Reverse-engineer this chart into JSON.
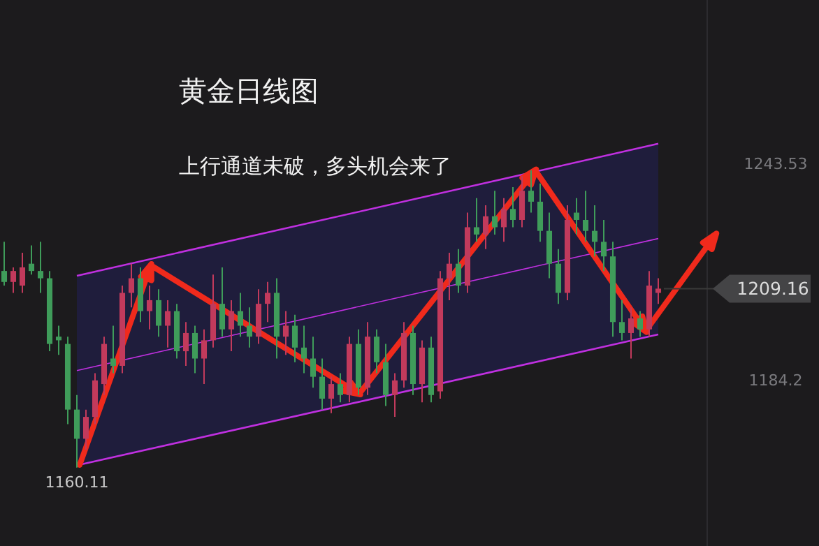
{
  "chart_data": {
    "type": "candlestick",
    "title": "黄金日线图",
    "subtitle": "上行通道未破，多头机会来了",
    "ylim": [
      1138.6,
      1288.3
    ],
    "yticks": [
      1184.2,
      1243.53
    ],
    "tick_labels": "y",
    "series": [
      {
        "type": "line",
        "color": "#c030e0",
        "values": [
          null,
          null,
          null,
          null,
          null,
          null,
          null,
          null,
          1186.7,
          null,
          null,
          null,
          null,
          null,
          null,
          null,
          null,
          null,
          null,
          null,
          null,
          null,
          null,
          null,
          null,
          null,
          null,
          null,
          null,
          null,
          null,
          null,
          null,
          null,
          null,
          null,
          null,
          null,
          null,
          null,
          null,
          null,
          null,
          null,
          null,
          null,
          null,
          null,
          null,
          null,
          null,
          null,
          null,
          null,
          null,
          null,
          null,
          null,
          null,
          null,
          null,
          null,
          null,
          null,
          null,
          null,
          null,
          null,
          null,
          null,
          null,
          null,
          1222.9
        ],
        "lower": [
          null,
          null,
          null,
          null,
          null,
          null,
          null,
          null,
          1160.7,
          null,
          null,
          null,
          null,
          null,
          null,
          null,
          null,
          null,
          null,
          null,
          null,
          null,
          null,
          null,
          null,
          null,
          null,
          null,
          null,
          null,
          null,
          null,
          null,
          null,
          null,
          null,
          null,
          null,
          null,
          null,
          null,
          null,
          null,
          null,
          null,
          null,
          null,
          null,
          null,
          null,
          null,
          null,
          null,
          null,
          null,
          null,
          null,
          null,
          null,
          null,
          null,
          null,
          null,
          null,
          null,
          null,
          null,
          null,
          null,
          null,
          null,
          null,
          1196.6
        ],
        "upper": [
          null,
          null,
          null,
          null,
          null,
          null,
          null,
          null,
          1212.7,
          null,
          null,
          null,
          null,
          null,
          null,
          null,
          null,
          null,
          null,
          null,
          null,
          null,
          null,
          null,
          null,
          null,
          null,
          null,
          null,
          null,
          null,
          null,
          null,
          null,
          null,
          null,
          null,
          null,
          null,
          null,
          null,
          null,
          null,
          null,
          null,
          null,
          null,
          null,
          null,
          null,
          null,
          null,
          null,
          null,
          null,
          null,
          null,
          null,
          null,
          null,
          null,
          null,
          null,
          null,
          null,
          null,
          null,
          null,
          null,
          null,
          null,
          null,
          1248.9
        ]
      },
      {
        "type": "line",
        "color": "#c030e0",
        "values": [
          null,
          null,
          null,
          null,
          null,
          null,
          null,
          null,
          1212.7,
          null,
          null,
          null,
          null,
          null,
          null,
          null,
          null,
          null,
          null,
          null,
          null,
          null,
          null,
          null,
          null,
          null,
          null,
          null,
          null,
          null,
          null,
          null,
          null,
          null,
          null,
          null,
          null,
          null,
          null,
          null,
          null,
          null,
          null,
          null,
          null,
          null,
          null,
          null,
          null,
          null,
          null,
          null,
          null,
          null,
          null,
          null,
          null,
          null,
          null,
          null,
          null,
          null,
          null,
          null,
          null,
          null,
          null,
          null,
          null,
          null,
          null,
          null,
          1248.9
        ]
      },
      {
        "type": "line",
        "color": "#c030e0",
        "values": [
          null,
          null,
          null,
          null,
          null,
          null,
          null,
          null,
          1160.7,
          null,
          null,
          null,
          null,
          null,
          null,
          null,
          null,
          null,
          null,
          null,
          null,
          null,
          null,
          null,
          null,
          null,
          null,
          null,
          null,
          null,
          null,
          null,
          null,
          null,
          null,
          null,
          null,
          null,
          null,
          null,
          null,
          null,
          null,
          null,
          null,
          null,
          null,
          null,
          null,
          null,
          null,
          null,
          null,
          null,
          null,
          null,
          null,
          null,
          null,
          null,
          null,
          null,
          null,
          null,
          null,
          null,
          null,
          null,
          null,
          null,
          null,
          null,
          1196.6
        ]
      }
    ],
    "categories": [
      null,
      null,
      null,
      null,
      null,
      null,
      null,
      null,
      null,
      null,
      null,
      null,
      null,
      null,
      null,
      null,
      null,
      null,
      null,
      null,
      null,
      null,
      null,
      null,
      null,
      null,
      null,
      null,
      null,
      null,
      null,
      null,
      null,
      null,
      null,
      null,
      null,
      null,
      null,
      null,
      null,
      null,
      null,
      null,
      null,
      null,
      null,
      null,
      null,
      null,
      null,
      null,
      null,
      null,
      null,
      null,
      null,
      null,
      null,
      null,
      null,
      null,
      null,
      null,
      null,
      null,
      null,
      null,
      null,
      null,
      null,
      null,
      null
    ],
    "ohlc": [
      [
        1214,
        1222,
        1210,
        1211
      ],
      [
        1211,
        1215,
        1208,
        1214
      ],
      [
        1210,
        1219,
        1208,
        1215
      ],
      [
        1216,
        1221,
        1213,
        1214
      ],
      [
        1214,
        1222,
        1208,
        1212
      ],
      [
        1212,
        1214,
        1192,
        1194
      ],
      [
        1196,
        1199,
        1191,
        1195
      ],
      [
        1194,
        1196,
        1172,
        1176
      ],
      [
        1176,
        1180,
        1160.11,
        1168
      ],
      [
        1168,
        1176,
        1165,
        1174
      ],
      [
        1174,
        1186,
        1172,
        1184
      ],
      [
        1183,
        1196,
        1180,
        1194
      ],
      [
        1190,
        1199,
        1186,
        1188
      ],
      [
        1188,
        1210,
        1186,
        1208
      ],
      [
        1208,
        1216,
        1204,
        1212
      ],
      [
        1212,
        1215,
        1200,
        1203
      ],
      [
        1203,
        1210,
        1198,
        1206
      ],
      [
        1206,
        1209,
        1196,
        1199
      ],
      [
        1199,
        1206,
        1193,
        1203
      ],
      [
        1203,
        1205,
        1190,
        1192
      ],
      [
        1192,
        1200,
        1188,
        1197
      ],
      [
        1197,
        1199,
        1186,
        1190
      ],
      [
        1190,
        1198,
        1183,
        1195
      ],
      [
        1195,
        1213,
        1193,
        1205
      ],
      [
        1205,
        1215,
        1196,
        1198
      ],
      [
        1198,
        1206,
        1192,
        1203
      ],
      [
        1203,
        1208,
        1196,
        1199
      ],
      [
        1199,
        1204,
        1193,
        1196
      ],
      [
        1196,
        1209,
        1194,
        1205
      ],
      [
        1205,
        1211,
        1200,
        1208
      ],
      [
        1208,
        1212,
        1190,
        1196
      ],
      [
        1196,
        1203,
        1191,
        1199
      ],
      [
        1199,
        1202,
        1189,
        1193
      ],
      [
        1193,
        1199,
        1186,
        1190
      ],
      [
        1190,
        1196,
        1182,
        1185
      ],
      [
        1185,
        1190,
        1176,
        1179
      ],
      [
        1179,
        1185,
        1175,
        1183
      ],
      [
        1183,
        1186,
        1178,
        1180
      ],
      [
        1180,
        1196,
        1178,
        1194
      ],
      [
        1194,
        1198,
        1180,
        1182
      ],
      [
        1182,
        1200,
        1180,
        1196
      ],
      [
        1196,
        1198,
        1186,
        1189
      ],
      [
        1189,
        1194,
        1177,
        1180
      ],
      [
        1180,
        1186,
        1174,
        1184
      ],
      [
        1184,
        1200,
        1182,
        1197
      ],
      [
        1197,
        1199,
        1180,
        1183
      ],
      [
        1183,
        1195,
        1178,
        1193
      ],
      [
        1193,
        1196,
        1178,
        1180
      ],
      [
        1181,
        1214,
        1179,
        1212
      ],
      [
        1212,
        1219,
        1206,
        1216
      ],
      [
        1216,
        1220,
        1208,
        1210
      ],
      [
        1210,
        1230,
        1208,
        1226
      ],
      [
        1226,
        1234,
        1222,
        1224
      ],
      [
        1224,
        1232,
        1220,
        1229
      ],
      [
        1229,
        1236,
        1224,
        1226
      ],
      [
        1226,
        1234,
        1222,
        1231
      ],
      [
        1231,
        1237,
        1226,
        1228
      ],
      [
        1228,
        1240,
        1226,
        1236
      ],
      [
        1236,
        1241.6,
        1230,
        1233
      ],
      [
        1233,
        1238,
        1222,
        1225
      ],
      [
        1225,
        1230,
        1212,
        1216
      ],
      [
        1216,
        1220,
        1205,
        1208
      ],
      [
        1208,
        1232,
        1206,
        1228
      ],
      [
        1230,
        1234,
        1224,
        1228
      ],
      [
        1228,
        1236,
        1222,
        1225
      ],
      [
        1225,
        1232,
        1218,
        1222
      ],
      [
        1222,
        1228,
        1214,
        1218
      ],
      [
        1218,
        1222,
        1196,
        1200
      ],
      [
        1200,
        1206,
        1195,
        1197
      ],
      [
        1197,
        1204,
        1190,
        1201
      ],
      [
        1201,
        1203,
        1196,
        1198
      ],
      [
        1198,
        1214,
        1196,
        1210
      ],
      [
        1208,
        1212,
        1205,
        1209.16
      ]
    ],
    "colors": [
      "#3f9c5a",
      "#c23a5c",
      "#c23a5c",
      "#3f9c5a",
      "#3f9c5a",
      "#3f9c5a",
      "#3f9c5a",
      "#3f9c5a",
      "#3f9c5a",
      "#c23a5c",
      "#c23a5c",
      "#c23a5c",
      "#3f9c5a",
      "#c23a5c",
      "#c23a5c",
      "#3f9c5a",
      "#c23a5c",
      "#3f9c5a",
      "#c23a5c",
      "#3f9c5a",
      "#c23a5c",
      "#3f9c5a",
      "#c23a5c",
      "#c23a5c",
      "#3f9c5a",
      "#c23a5c",
      "#3f9c5a",
      "#3f9c5a",
      "#c23a5c",
      "#c23a5c",
      "#3f9c5a",
      "#c23a5c",
      "#3f9c5a",
      "#3f9c5a",
      "#3f9c5a",
      "#3f9c5a",
      "#c23a5c",
      "#3f9c5a",
      "#c23a5c",
      "#3f9c5a",
      "#c23a5c",
      "#3f9c5a",
      "#3f9c5a",
      "#c23a5c",
      "#c23a5c",
      "#3f9c5a",
      "#c23a5c",
      "#3f9c5a",
      "#c23a5c",
      "#c23a5c",
      "#3f9c5a",
      "#c23a5c",
      "#3f9c5a",
      "#c23a5c",
      "#3f9c5a",
      "#c23a5c",
      "#3f9c5a",
      "#c23a5c",
      "#3f9c5a",
      "#3f9c5a",
      "#3f9c5a",
      "#3f9c5a",
      "#c23a5c",
      "#3f9c5a",
      "#3f9c5a",
      "#3f9c5a",
      "#3f9c5a",
      "#3f9c5a",
      "#3f9c5a",
      "#c23a5c",
      "#3f9c5a",
      "#c23a5c",
      "#c23a5c"
    ],
    "ref_lines": [
      {
        "axis": "y",
        "value": 1209.16,
        "label": "1209.16"
      }
    ],
    "annotations": [
      {
        "text": "1160.11",
        "y": 1160.11
      }
    ]
  }
}
